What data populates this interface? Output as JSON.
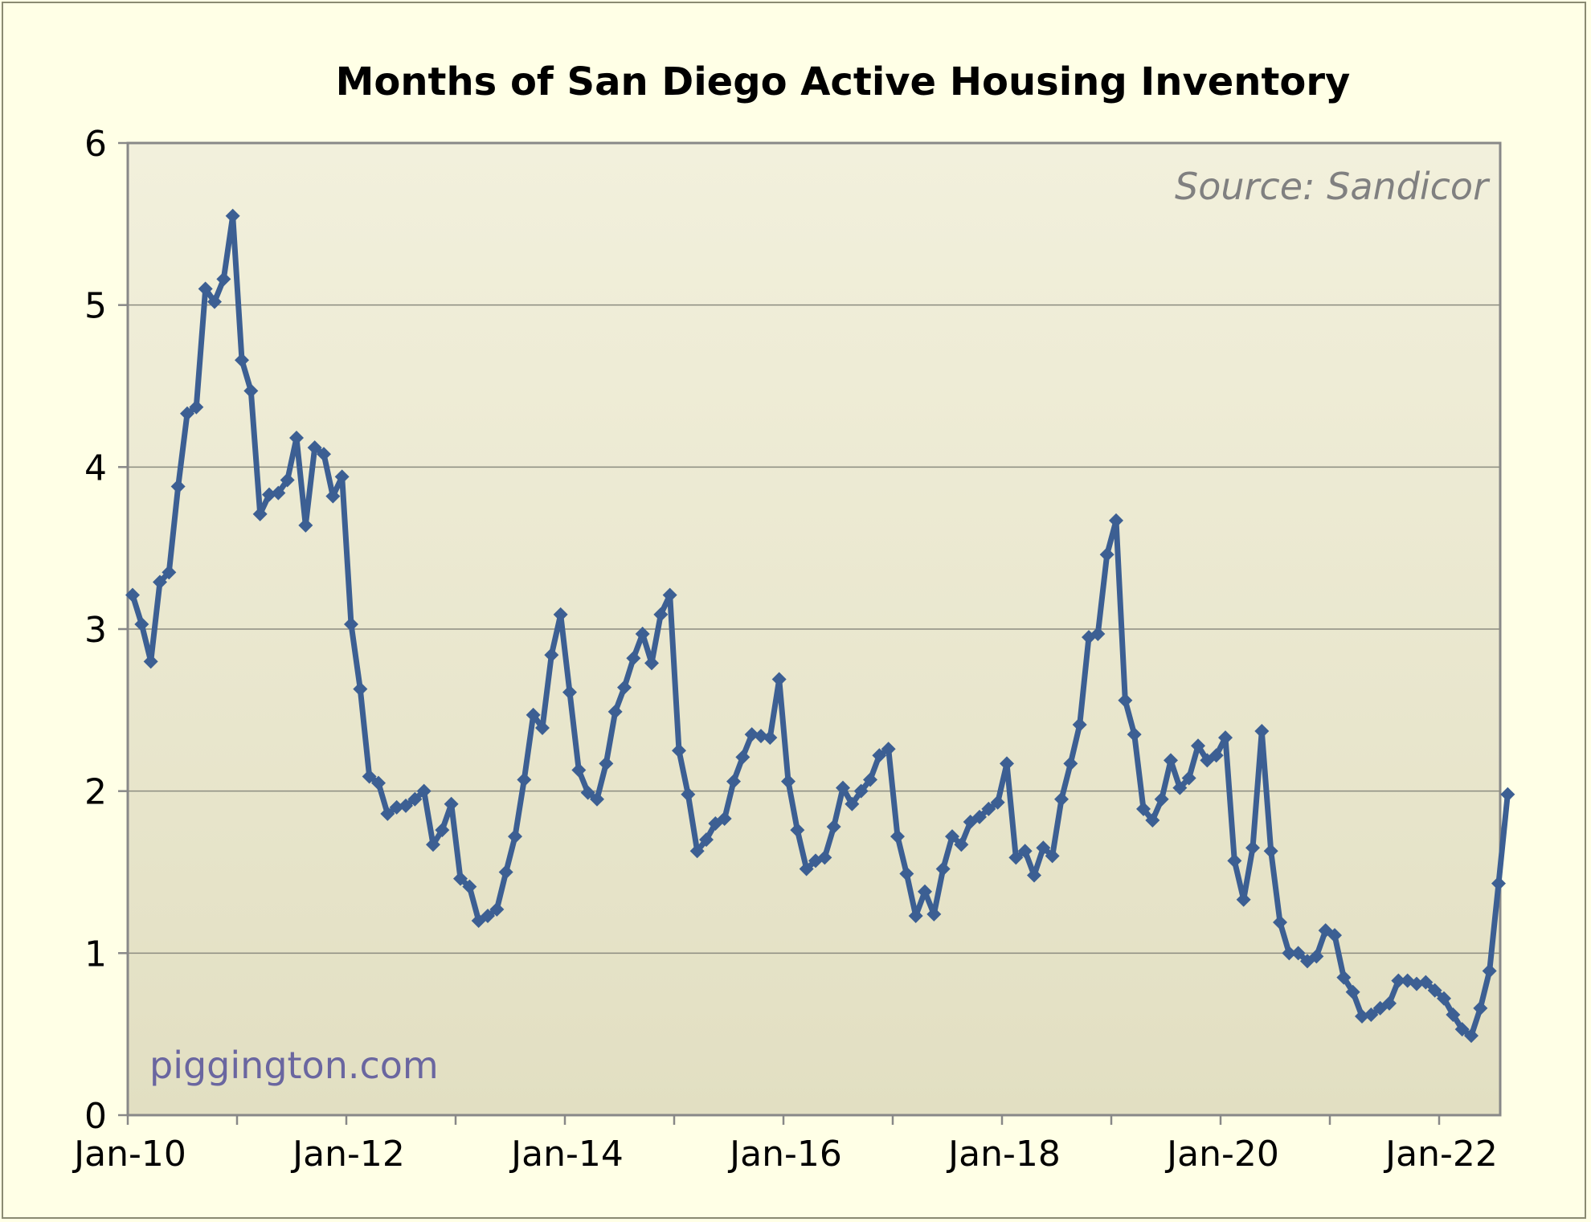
{
  "chart_data": {
    "type": "line",
    "title": "Months of San Diego Active Housing Inventory",
    "source_note": "Source: Sandicor",
    "watermark": "piggington.com",
    "xlabel": "",
    "ylabel": "",
    "ylim": [
      0,
      6
    ],
    "yticks": [
      "0",
      "1",
      "2",
      "3",
      "4",
      "5",
      "6"
    ],
    "xticks": [
      "Jan-10",
      "Jan-12",
      "Jan-14",
      "Jan-16",
      "Jan-18",
      "Jan-20",
      "Jan-22"
    ],
    "x_start": "Jan-10",
    "x_end": "Jul-22",
    "grid": "horizontal",
    "colors": {
      "line": "#3c5f93",
      "plot_top": "#f2f0dc",
      "plot_bottom": "#e2dfc2",
      "background": "#ffffe6"
    },
    "series": [
      {
        "values": [
          3.21,
          3.03,
          2.8,
          3.29,
          3.35,
          3.88,
          4.33,
          4.37,
          5.1,
          5.02,
          5.16,
          5.55,
          4.66,
          4.47,
          3.71,
          3.83,
          3.84,
          3.92,
          4.18,
          3.64,
          4.12,
          4.08,
          3.82,
          3.94,
          3.03,
          2.63,
          2.09,
          2.05,
          1.86,
          1.9,
          1.91,
          1.95,
          2.0,
          1.67,
          1.76,
          1.92,
          1.46,
          1.41,
          1.2,
          1.23,
          1.27,
          1.5,
          1.72,
          2.07,
          2.47,
          2.39,
          2.84,
          3.09,
          2.61,
          2.13,
          1.99,
          1.95,
          2.17,
          2.49,
          2.64,
          2.82,
          2.97,
          2.79,
          3.09,
          3.21,
          2.25,
          1.98,
          1.63,
          1.7,
          1.8,
          1.83,
          2.06,
          2.21,
          2.35,
          2.34,
          2.33,
          2.69,
          2.06,
          1.76,
          1.52,
          1.57,
          1.59,
          1.78,
          2.02,
          1.92,
          2.0,
          2.07,
          2.22,
          2.26,
          1.72,
          1.49,
          1.23,
          1.38,
          1.24,
          1.52,
          1.72,
          1.67,
          1.81,
          1.84,
          1.89,
          1.93,
          2.17,
          1.59,
          1.63,
          1.48,
          1.65,
          1.6,
          1.95,
          2.17,
          2.41,
          2.95,
          2.97,
          3.46,
          3.67,
          2.56,
          2.35,
          1.89,
          1.82,
          1.95,
          2.19,
          2.02,
          2.08,
          2.28,
          2.19,
          2.22,
          2.33,
          1.57,
          1.33,
          1.65,
          2.37,
          1.63,
          1.19,
          1.0,
          1.0,
          0.95,
          0.98,
          1.14,
          1.11,
          0.85,
          0.76,
          0.61,
          0.62,
          0.66,
          0.69,
          0.83,
          0.83,
          0.81,
          0.82,
          0.77,
          0.72,
          0.62,
          0.53,
          0.49,
          0.66,
          0.89,
          1.43,
          1.98
        ]
      }
    ]
  }
}
